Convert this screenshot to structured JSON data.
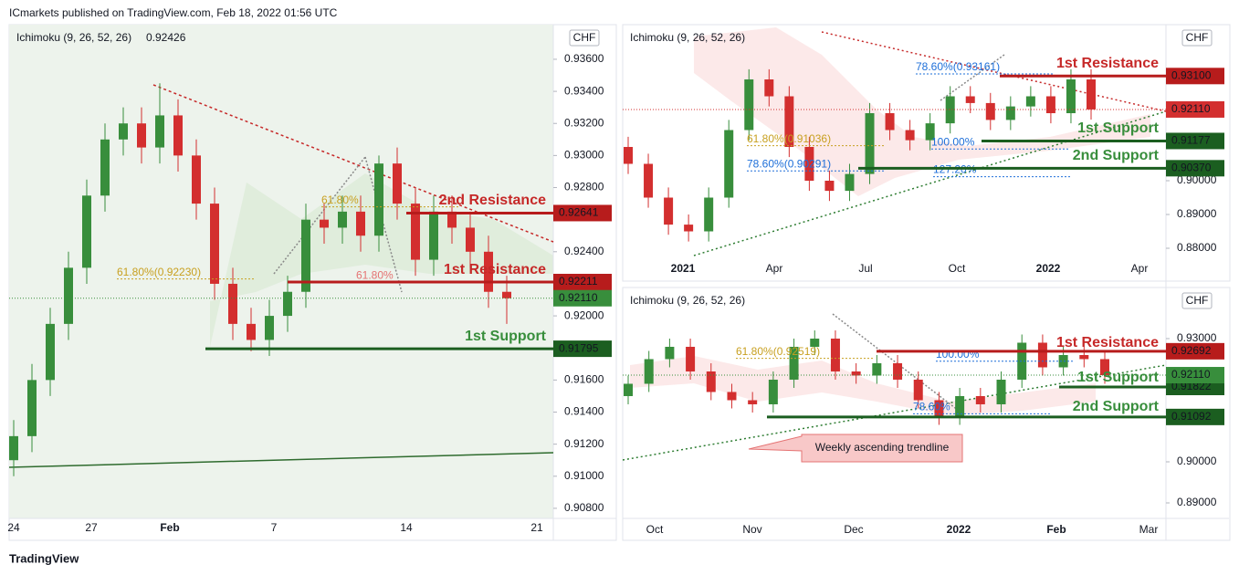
{
  "header": "ICmarkets published on TradingView.com, Feb 18, 2022 01:56 UTC",
  "footer": "TradingView",
  "chart_data": [
    {
      "type": "candlestick",
      "indicator": "Ichimoku (9, 26, 52, 26)",
      "indicator_value": "0.92426",
      "currency": "CHF",
      "x_labels": [
        "24",
        "27",
        "Feb",
        "7",
        "14",
        "21"
      ],
      "ylim": [
        0.90737,
        0.93816
      ],
      "yticks": [
        {
          "value": 0.908,
          "label": "0.90800"
        },
        {
          "value": 0.91,
          "label": "0.91000"
        },
        {
          "value": 0.912,
          "label": "0.91200"
        },
        {
          "value": 0.914,
          "label": "0.91400"
        },
        {
          "value": 0.916,
          "label": "0.91600"
        },
        {
          "value": 0.92,
          "label": "0.92000"
        },
        {
          "value": 0.924,
          "label": "0.92400"
        },
        {
          "value": 0.928,
          "label": "0.92800"
        },
        {
          "value": 0.93,
          "label": "0.93000"
        },
        {
          "value": 0.932,
          "label": "0.93200"
        },
        {
          "value": 0.934,
          "label": "0.93400"
        },
        {
          "value": 0.936,
          "label": "0.93600"
        }
      ],
      "open": [
        0.911,
        0.9125,
        0.916,
        0.9195,
        0.923,
        0.9275,
        0.931,
        0.932,
        0.9305,
        0.9325,
        0.93,
        0.927,
        0.922,
        0.9195,
        0.9185,
        0.92,
        0.9215,
        0.926,
        0.9255,
        0.9265,
        0.925,
        0.9295,
        0.927,
        0.9235,
        0.9265,
        0.9255,
        0.924,
        0.9215
      ],
      "high": [
        0.9135,
        0.917,
        0.9205,
        0.924,
        0.9285,
        0.932,
        0.933,
        0.933,
        0.9345,
        0.9335,
        0.931,
        0.928,
        0.923,
        0.9205,
        0.921,
        0.9225,
        0.927,
        0.927,
        0.9275,
        0.9275,
        0.93,
        0.9305,
        0.928,
        0.9275,
        0.9275,
        0.9265,
        0.925,
        0.9225
      ],
      "low": [
        0.91,
        0.9115,
        0.915,
        0.9185,
        0.922,
        0.9265,
        0.93,
        0.9295,
        0.9295,
        0.929,
        0.926,
        0.921,
        0.9185,
        0.9178,
        0.9175,
        0.919,
        0.9205,
        0.9245,
        0.9245,
        0.924,
        0.924,
        0.926,
        0.9225,
        0.9225,
        0.9245,
        0.923,
        0.9205,
        0.9195
      ],
      "close": [
        0.9125,
        0.916,
        0.9195,
        0.923,
        0.9275,
        0.931,
        0.932,
        0.9305,
        0.9325,
        0.93,
        0.927,
        0.922,
        0.9195,
        0.9185,
        0.92,
        0.9215,
        0.926,
        0.9255,
        0.9265,
        0.925,
        0.9295,
        0.927,
        0.9235,
        0.9265,
        0.9255,
        0.924,
        0.9215,
        0.9211
      ],
      "up_color": "#388e3c",
      "down_color": "#d32f2f",
      "levels": [
        {
          "label": "2nd Resistance",
          "value": 0.92641,
          "value_label": "0.92641",
          "color": "#b71c1c"
        },
        {
          "label": "1st Resistance",
          "value": 0.92211,
          "value_label": "0.92211",
          "color": "#b71c1c"
        },
        {
          "label": "1st Support",
          "value": 0.91795,
          "value_label": "0.91795",
          "color": "#1b5e20"
        }
      ],
      "last": {
        "value": 0.9211,
        "value_label": "0.92110",
        "color": "#388e3c"
      },
      "fibs": [
        {
          "text": "61.80%(0.92230)",
          "price": 0.9223,
          "color": "#c8a020"
        },
        {
          "text": "61.80%",
          "price": 0.9268,
          "color": "#c8a020"
        },
        {
          "text": "61.80%",
          "price": 0.9221,
          "color": "#e57373"
        }
      ]
    },
    {
      "type": "candlestick",
      "indicator": "Ichimoku (9, 26, 52, 26)",
      "currency": "CHF",
      "x_labels": [
        "2021",
        "Apr",
        "Jul",
        "Oct",
        "2022",
        "Apr"
      ],
      "ylim": [
        0.87027,
        0.94622
      ],
      "yticks": [
        {
          "value": 0.88,
          "label": "0.88000"
        },
        {
          "value": 0.89,
          "label": "0.89000"
        },
        {
          "value": 0.9,
          "label": "0.90000"
        }
      ],
      "open": [
        0.91,
        0.905,
        0.895,
        0.887,
        0.885,
        0.895,
        0.915,
        0.93,
        0.925,
        0.91,
        0.9,
        0.897,
        0.902,
        0.92,
        0.915,
        0.912,
        0.917,
        0.925,
        0.923,
        0.918,
        0.922,
        0.925,
        0.92,
        0.93
      ],
      "high": [
        0.913,
        0.908,
        0.898,
        0.89,
        0.898,
        0.918,
        0.933,
        0.933,
        0.928,
        0.913,
        0.903,
        0.905,
        0.923,
        0.923,
        0.918,
        0.92,
        0.928,
        0.928,
        0.926,
        0.925,
        0.928,
        0.928,
        0.933,
        0.933
      ],
      "low": [
        0.902,
        0.892,
        0.884,
        0.882,
        0.882,
        0.892,
        0.912,
        0.922,
        0.907,
        0.897,
        0.894,
        0.894,
        0.899,
        0.912,
        0.909,
        0.909,
        0.914,
        0.92,
        0.915,
        0.915,
        0.919,
        0.917,
        0.917,
        0.9181
      ],
      "close": [
        0.905,
        0.895,
        0.887,
        0.885,
        0.895,
        0.915,
        0.93,
        0.925,
        0.91,
        0.9,
        0.897,
        0.902,
        0.92,
        0.915,
        0.912,
        0.917,
        0.925,
        0.923,
        0.918,
        0.922,
        0.925,
        0.92,
        0.93,
        0.9211
      ],
      "up_color": "#388e3c",
      "down_color": "#d32f2f",
      "levels": [
        {
          "label": "1st Resistance",
          "value": 0.931,
          "value_label": "0.93100",
          "color": "#b71c1c"
        },
        {
          "label": "1st Support",
          "value": 0.91177,
          "value_label": "0.91177",
          "color": "#1b5e20"
        },
        {
          "label": "2nd Support",
          "value": 0.9037,
          "value_label": "0.90370",
          "color": "#1b5e20"
        }
      ],
      "last": {
        "value": 0.9211,
        "value_label": "0.92110",
        "color": "#d32f2f"
      },
      "fibs": [
        {
          "text": "78.60%(0.93161)",
          "price": 0.93161,
          "color": "#1e6fd9"
        },
        {
          "text": "61.80%(0.91036)",
          "price": 0.91036,
          "color": "#c8a020"
        },
        {
          "text": "100.00%",
          "price": 0.9094,
          "color": "#1e6fd9"
        },
        {
          "text": "78.60%(0.90291)",
          "price": 0.90291,
          "color": "#1e6fd9"
        },
        {
          "text": "127.20%",
          "price": 0.9012,
          "color": "#1e6fd9"
        }
      ]
    },
    {
      "type": "candlestick",
      "indicator": "Ichimoku (9, 26, 52, 26)",
      "currency": "CHF",
      "x_labels": [
        "Oct",
        "Nov",
        "Dec",
        "2022",
        "Feb",
        "Mar"
      ],
      "ylim": [
        0.88622,
        0.94244
      ],
      "yticks": [
        {
          "value": 0.89,
          "label": "0.89000"
        },
        {
          "value": 0.9,
          "label": "0.90000"
        },
        {
          "value": 0.93,
          "label": "0.93000"
        }
      ],
      "open": [
        0.916,
        0.919,
        0.925,
        0.928,
        0.922,
        0.917,
        0.915,
        0.914,
        0.92,
        0.928,
        0.93,
        0.922,
        0.921,
        0.924,
        0.92,
        0.915,
        0.911,
        0.916,
        0.914,
        0.92,
        0.929,
        0.923,
        0.926,
        0.925
      ],
      "high": [
        0.921,
        0.927,
        0.93,
        0.93,
        0.924,
        0.919,
        0.917,
        0.922,
        0.93,
        0.932,
        0.932,
        0.924,
        0.926,
        0.926,
        0.922,
        0.917,
        0.918,
        0.918,
        0.922,
        0.931,
        0.931,
        0.928,
        0.928,
        0.927
      ],
      "low": [
        0.914,
        0.917,
        0.923,
        0.92,
        0.915,
        0.913,
        0.912,
        0.912,
        0.918,
        0.926,
        0.92,
        0.919,
        0.919,
        0.918,
        0.913,
        0.909,
        0.909,
        0.912,
        0.912,
        0.918,
        0.921,
        0.921,
        0.923,
        0.919
      ],
      "close": [
        0.919,
        0.925,
        0.928,
        0.922,
        0.917,
        0.915,
        0.914,
        0.92,
        0.928,
        0.93,
        0.922,
        0.921,
        0.924,
        0.92,
        0.915,
        0.911,
        0.916,
        0.914,
        0.92,
        0.929,
        0.923,
        0.926,
        0.925,
        0.9211
      ],
      "up_color": "#388e3c",
      "down_color": "#d32f2f",
      "levels": [
        {
          "label": "1st Resistance",
          "value": 0.92692,
          "value_label": "0.92692",
          "color": "#b71c1c"
        },
        {
          "label": "1st Support",
          "value": 0.91822,
          "value_label": "0.91822",
          "color": "#1b5e20"
        },
        {
          "label": "2nd Support",
          "value": 0.91092,
          "value_label": "0.91092",
          "color": "#1b5e20"
        }
      ],
      "last": {
        "value": 0.9211,
        "value_label": "0.92110",
        "color": "#388e3c"
      },
      "fibs": [
        {
          "text": "61.80%(0.92519)",
          "price": 0.92519,
          "color": "#c8a020"
        },
        {
          "text": "100.00%",
          "price": 0.9245,
          "color": "#1e6fd9"
        },
        {
          "text": "78.60%",
          "price": 0.9117,
          "color": "#1e6fd9"
        }
      ],
      "annotation": "Weekly ascending trendline"
    }
  ]
}
